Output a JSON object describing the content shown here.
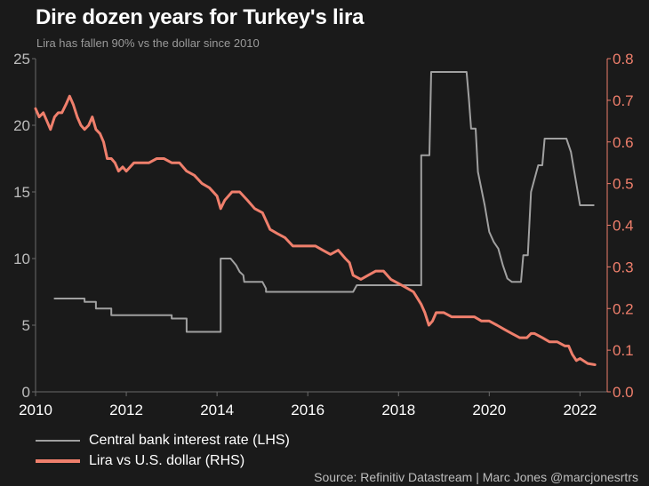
{
  "title": "Dire dozen years for Turkey's lira",
  "subtitle": "Lira has fallen 90% vs the dollar since 2010",
  "source": "Source: Refinitiv Datastream | Marc Jones @marcjonesrtrs",
  "colors": {
    "background": "#1a1a1a",
    "rate_line": "#a0a0a0",
    "lira_line": "#ef7f6c",
    "left_axis_text": "#bdbdbd",
    "right_axis_text": "#ef7f6c"
  },
  "chart_data": {
    "type": "line",
    "title": "Dire dozen years for Turkey's lira",
    "subtitle": "Lira has fallen 90% vs the dollar since 2010",
    "xlim": [
      2010,
      2022.6
    ],
    "ylim_left": [
      0,
      25
    ],
    "ylim_right": [
      0,
      0.8
    ],
    "x_ticks": [
      2010,
      2012,
      2014,
      2016,
      2018,
      2020,
      2022
    ],
    "x_tick_labels": [
      "2010",
      "2012",
      "2014",
      "2016",
      "2018",
      "2020",
      "2022"
    ],
    "y_ticks_left": [
      0,
      5,
      10,
      15,
      20,
      25
    ],
    "y_tick_labels_left": [
      "0",
      "5",
      "10",
      "15",
      "20",
      "25"
    ],
    "y_ticks_right": [
      0.0,
      0.1,
      0.2,
      0.3,
      0.4,
      0.5,
      0.6,
      0.7,
      0.8
    ],
    "y_tick_labels_right": [
      "0.0",
      "0.1",
      "0.2",
      "0.3",
      "0.4",
      "0.5",
      "0.6",
      "0.7",
      "0.8"
    ],
    "grid": false,
    "legend_position": "bottom-left",
    "series": [
      {
        "name": "Central bank interest rate (LHS)",
        "axis": "left",
        "color": "#a0a0a0",
        "x": [
          2010.42,
          2011.08,
          2011.08,
          2011.33,
          2011.33,
          2011.67,
          2011.67,
          2012.33,
          2012.33,
          2013.0,
          2013.0,
          2013.33,
          2013.33,
          2013.92,
          2013.92,
          2014.08,
          2014.08,
          2014.3,
          2014.42,
          2014.5,
          2014.58,
          2014.6,
          2014.92,
          2015.0,
          2015.08,
          2015.08,
          2015.92,
          2016.0,
          2016.0,
          2016.92,
          2017.0,
          2017.08,
          2017.08,
          2018.42,
          2018.42,
          2018.5,
          2018.5,
          2018.68,
          2018.72,
          2019.42,
          2019.5,
          2019.55,
          2019.6,
          2019.7,
          2019.75,
          2019.9,
          2020.0,
          2020.1,
          2020.2,
          2020.3,
          2020.4,
          2020.5,
          2020.6,
          2020.7,
          2020.75,
          2020.85,
          2020.92,
          2021.08,
          2021.17,
          2021.22,
          2021.6,
          2021.7,
          2021.8,
          2021.9,
          2022.0,
          2022.3
        ],
        "values": [
          7.0,
          7.0,
          6.75,
          6.75,
          6.25,
          6.25,
          5.75,
          5.75,
          5.75,
          5.75,
          5.5,
          5.5,
          4.5,
          4.5,
          4.5,
          4.5,
          10.0,
          10.0,
          9.5,
          9.0,
          8.75,
          8.25,
          8.25,
          8.25,
          7.75,
          7.5,
          7.5,
          7.5,
          7.5,
          7.5,
          7.5,
          8.0,
          8.0,
          8.0,
          8.0,
          8.0,
          17.75,
          17.75,
          24.0,
          24.0,
          24.0,
          22.0,
          19.75,
          19.75,
          16.5,
          14.0,
          12.0,
          11.25,
          10.75,
          9.5,
          8.5,
          8.25,
          8.25,
          8.25,
          10.25,
          10.25,
          15.0,
          17.0,
          17.0,
          19.0,
          19.0,
          19.0,
          18.0,
          16.0,
          14.0,
          14.0
        ]
      },
      {
        "name": "Lira vs U.S. dollar (RHS)",
        "axis": "right",
        "color": "#ef7f6c",
        "x": [
          2010.0,
          2010.08,
          2010.17,
          2010.25,
          2010.33,
          2010.42,
          2010.5,
          2010.58,
          2010.67,
          2010.75,
          2010.83,
          2010.92,
          2011.0,
          2011.08,
          2011.17,
          2011.25,
          2011.33,
          2011.42,
          2011.5,
          2011.58,
          2011.67,
          2011.75,
          2011.83,
          2011.92,
          2012.0,
          2012.17,
          2012.33,
          2012.5,
          2012.67,
          2012.83,
          2013.0,
          2013.17,
          2013.33,
          2013.5,
          2013.67,
          2013.83,
          2014.0,
          2014.08,
          2014.17,
          2014.33,
          2014.5,
          2014.67,
          2014.83,
          2015.0,
          2015.17,
          2015.33,
          2015.5,
          2015.67,
          2015.83,
          2016.0,
          2016.17,
          2016.33,
          2016.5,
          2016.67,
          2016.83,
          2016.92,
          2017.0,
          2017.17,
          2017.33,
          2017.5,
          2017.67,
          2017.83,
          2018.0,
          2018.17,
          2018.33,
          2018.5,
          2018.58,
          2018.67,
          2018.75,
          2018.83,
          2019.0,
          2019.17,
          2019.33,
          2019.5,
          2019.67,
          2019.83,
          2020.0,
          2020.17,
          2020.33,
          2020.5,
          2020.67,
          2020.83,
          2020.92,
          2021.0,
          2021.17,
          2021.33,
          2021.5,
          2021.67,
          2021.75,
          2021.83,
          2021.92,
          2022.0,
          2022.17,
          2022.33
        ],
        "values": [
          0.68,
          0.66,
          0.67,
          0.65,
          0.63,
          0.66,
          0.67,
          0.67,
          0.69,
          0.71,
          0.69,
          0.66,
          0.64,
          0.63,
          0.64,
          0.66,
          0.63,
          0.62,
          0.6,
          0.56,
          0.56,
          0.55,
          0.53,
          0.54,
          0.53,
          0.55,
          0.55,
          0.55,
          0.56,
          0.56,
          0.55,
          0.55,
          0.53,
          0.52,
          0.5,
          0.49,
          0.47,
          0.44,
          0.46,
          0.48,
          0.48,
          0.46,
          0.44,
          0.43,
          0.39,
          0.38,
          0.37,
          0.35,
          0.35,
          0.35,
          0.35,
          0.34,
          0.33,
          0.34,
          0.32,
          0.31,
          0.28,
          0.27,
          0.28,
          0.29,
          0.29,
          0.27,
          0.26,
          0.25,
          0.24,
          0.21,
          0.19,
          0.16,
          0.17,
          0.19,
          0.19,
          0.18,
          0.18,
          0.18,
          0.18,
          0.17,
          0.17,
          0.16,
          0.15,
          0.14,
          0.13,
          0.13,
          0.14,
          0.14,
          0.13,
          0.12,
          0.12,
          0.11,
          0.11,
          0.09,
          0.075,
          0.08,
          0.068,
          0.065
        ]
      }
    ]
  }
}
